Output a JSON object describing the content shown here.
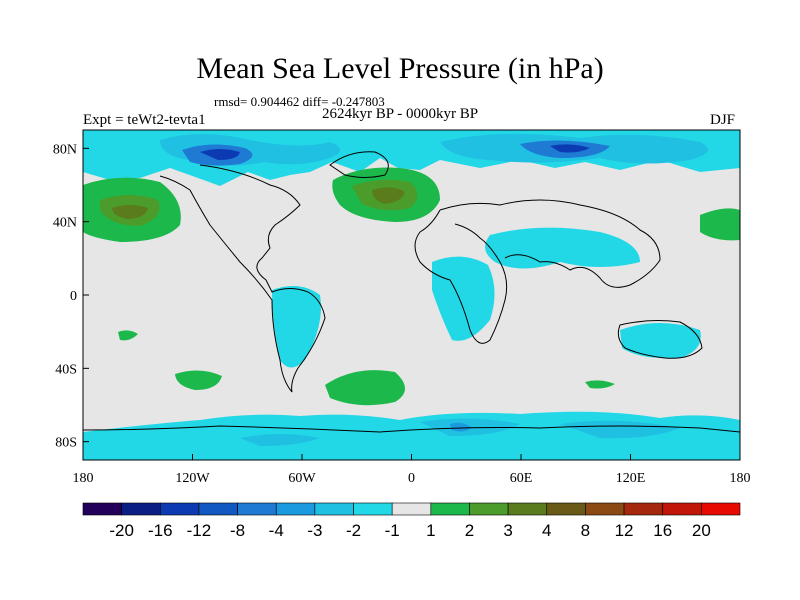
{
  "title": "Mean Sea Level Pressure (in hPa)",
  "stats": "rmsd= 0.904462 diff= -0.247803",
  "period": "2624kyr BP - 0000kyr BP",
  "experiment": "Expt = teWt2-tevta1",
  "season": "DJF",
  "map": {
    "projection": "cylindrical equidistant",
    "lon_range": [
      -180,
      180
    ],
    "lat_range": [
      -90,
      90
    ],
    "x_ticks": [
      {
        "lon": -180,
        "label": "180"
      },
      {
        "lon": -120,
        "label": "120W"
      },
      {
        "lon": -60,
        "label": "60W"
      },
      {
        "lon": 0,
        "label": "0"
      },
      {
        "lon": 60,
        "label": "60E"
      },
      {
        "lon": 120,
        "label": "120E"
      },
      {
        "lon": 180,
        "label": "180"
      }
    ],
    "y_ticks": [
      {
        "lat": 80,
        "label": "80N"
      },
      {
        "lat": 40,
        "label": "40N"
      },
      {
        "lat": 0,
        "label": "0"
      },
      {
        "lat": -40,
        "label": "40S"
      },
      {
        "lat": -80,
        "label": "80S"
      }
    ],
    "background_color": "#e6e6e6"
  },
  "colorbar": {
    "colors": [
      "#23005a",
      "#0b1e84",
      "#0c3ab2",
      "#1258c2",
      "#1f7ad4",
      "#1c9ae0",
      "#1fc0e2",
      "#22d8e6",
      "#e6e6e6",
      "#1db84c",
      "#4b9c2a",
      "#5a7c1d",
      "#6a5a18",
      "#8b4a14",
      "#a5280e",
      "#c21608",
      "#e60a00"
    ],
    "labels": [
      "-20",
      "-16",
      "-12",
      "-8",
      "-4",
      "-3",
      "-2",
      "-1",
      "1",
      "2",
      "3",
      "4",
      "8",
      "12",
      "16",
      "20"
    ]
  }
}
